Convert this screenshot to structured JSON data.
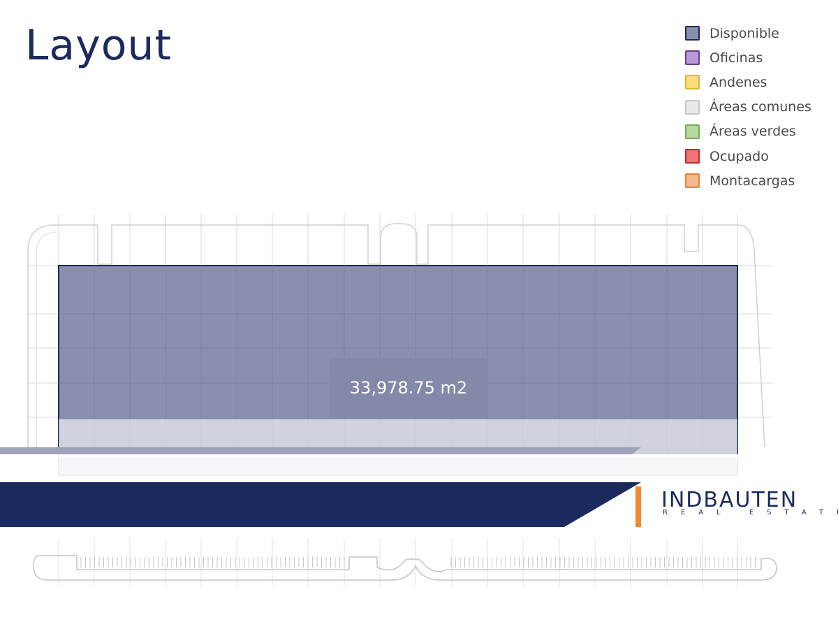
{
  "page": {
    "title": "Layout"
  },
  "legend": [
    {
      "label": "Disponible",
      "fill": "#8a8fad",
      "stroke": "#1b2a5e",
      "icon": "disponible-swatch"
    },
    {
      "label": "Oficinas",
      "fill": "#b69bd4",
      "stroke": "#6a3d9a",
      "icon": "oficinas-swatch"
    },
    {
      "label": "Andenes",
      "fill": "#f7df7a",
      "stroke": "#e0b830",
      "icon": "andenes-swatch"
    },
    {
      "label": "Áreas comunes",
      "fill": "#e9e9e9",
      "stroke": "#c8c8c8",
      "icon": "areas-comunes-swatch"
    },
    {
      "label": "Áreas verdes",
      "fill": "#b7d89e",
      "stroke": "#7aab5b",
      "icon": "areas-verdes-swatch"
    },
    {
      "label": "Ocupado",
      "fill": "#f27575",
      "stroke": "#c0282e",
      "icon": "ocupado-swatch"
    },
    {
      "label": "Montacargas",
      "fill": "#f4b98c",
      "stroke": "#e3843c",
      "icon": "montacargas-swatch"
    }
  ],
  "plan": {
    "area_label": "33,978.75 m2",
    "colors": {
      "available": "#8a8fad",
      "available_border": "#1b2a5e",
      "grid": "#d2d2d2"
    }
  },
  "banner": {
    "colors": {
      "navy": "#1b2a5e",
      "orange": "#f08a2c"
    }
  },
  "logo": {
    "name": "INDBAUTEN",
    "subtitle": "REAL ESTATE"
  }
}
